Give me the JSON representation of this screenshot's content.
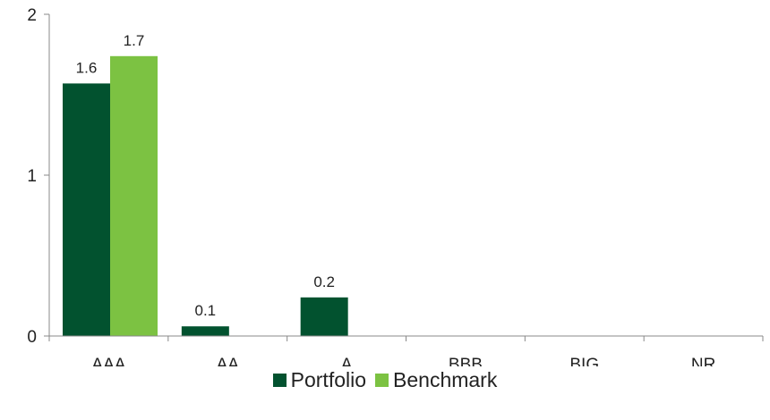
{
  "chart_data": {
    "type": "bar",
    "categories": [
      "AAA",
      "AA",
      "A",
      "BBB",
      "BIG",
      "NR"
    ],
    "series": [
      {
        "name": "Portfolio",
        "values": [
          1.57,
          0.06,
          0.24,
          0,
          0,
          0
        ],
        "labels": [
          "1.6",
          "0.1",
          "0.2",
          "",
          "",
          ""
        ],
        "color": "#02522f"
      },
      {
        "name": "Benchmark",
        "values": [
          1.74,
          0,
          0,
          0,
          0,
          0
        ],
        "labels": [
          "1.7",
          "",
          "",
          "",
          "",
          ""
        ],
        "color": "#7cc242"
      }
    ],
    "ylim": [
      0,
      2
    ],
    "yticks": [
      "0",
      "1",
      "2"
    ],
    "title": "",
    "xlabel": "",
    "ylabel": "",
    "legend": "bottom",
    "grid": false
  }
}
